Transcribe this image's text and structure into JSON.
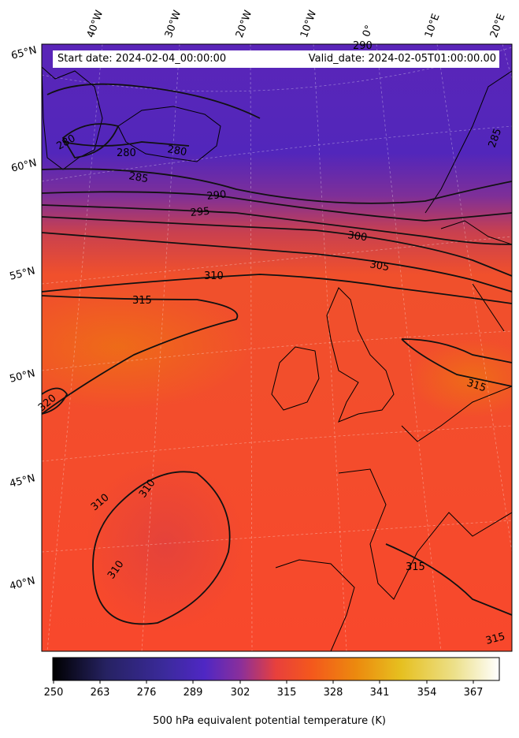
{
  "map": {
    "start_date": "Start date: 2024-02-04_00:00:00",
    "valid_date": "Valid_date: 2024-02-05T01:00:00.00",
    "longitude_labels": [
      "40°W",
      "30°W",
      "20°W",
      "10°W",
      "0°",
      "10°E",
      "20°E"
    ],
    "latitude_labels": [
      "65°N",
      "60°N",
      "55°N",
      "50°N",
      "45°N",
      "40°N"
    ],
    "contour_labels": [
      "280",
      "280",
      "280",
      "285",
      "290",
      "295",
      "300",
      "305",
      "310",
      "315",
      "315",
      "320",
      "310",
      "310",
      "310",
      "315",
      "315",
      "290",
      "285"
    ],
    "colormap": "CMRmap",
    "colors": {
      "cold": "#4f24b9",
      "mid": "#d24a3c",
      "warm": "#f2592c",
      "warmest": "#ee6a1e"
    }
  },
  "colorbar": {
    "ticks": [
      "250",
      "263",
      "276",
      "289",
      "302",
      "315",
      "328",
      "341",
      "354",
      "367"
    ],
    "range": [
      250,
      372
    ],
    "label": "500 hPa equivalent potential temperature (K)"
  }
}
